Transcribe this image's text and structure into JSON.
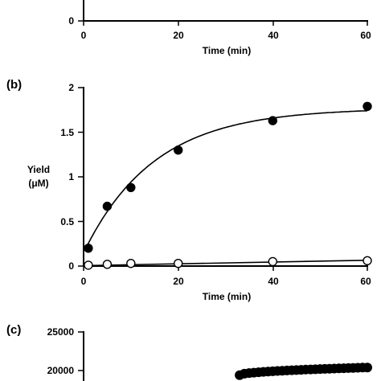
{
  "chart_data": [
    {
      "panel_label": "",
      "type": "scatter",
      "xlabel": "Time (min)",
      "ylabel": "",
      "xlim": [
        0,
        60
      ],
      "xticks": [
        "0",
        "20",
        "40",
        "60"
      ],
      "yticks": [
        "0"
      ]
    },
    {
      "panel_label": "(b)",
      "type": "scatter",
      "xlabel": "Time (min)",
      "ylabel_line1": "Yield",
      "ylabel_line2": "(μM)",
      "xlim": [
        0,
        60
      ],
      "ylim": [
        0,
        2
      ],
      "xticks": [
        "0",
        "20",
        "40",
        "60"
      ],
      "yticks": [
        "0",
        "0.5",
        "1",
        "1.5",
        "2"
      ],
      "series": [
        {
          "marker": "filled-circle",
          "x": [
            1,
            5,
            10,
            20,
            40,
            60
          ],
          "y": [
            0.2,
            0.67,
            0.88,
            1.3,
            1.63,
            1.79
          ]
        },
        {
          "marker": "open-circle",
          "x": [
            1,
            5,
            10,
            20,
            40,
            60
          ],
          "y": [
            0.01,
            0.02,
            0.03,
            0.03,
            0.05,
            0.06
          ]
        }
      ],
      "fit_lines": [
        {
          "model": "exponential-rise",
          "y0": 0.15,
          "plateau": 1.77,
          "k": 0.067
        },
        {
          "model": "linear",
          "intercept": 0.005,
          "slope": 0.001
        }
      ]
    },
    {
      "panel_label": "(c)",
      "type": "scatter",
      "xlabel": "",
      "ylabel": "",
      "ylim": [
        15000,
        25000
      ],
      "yticks": [
        "25000",
        "20000"
      ],
      "series": [
        {
          "marker": "filled-circle",
          "model": "rising-curve",
          "x_start": 0.55,
          "x_end": 1.0,
          "y_start": 19400,
          "y_end": 20400,
          "count": 28
        }
      ]
    }
  ]
}
